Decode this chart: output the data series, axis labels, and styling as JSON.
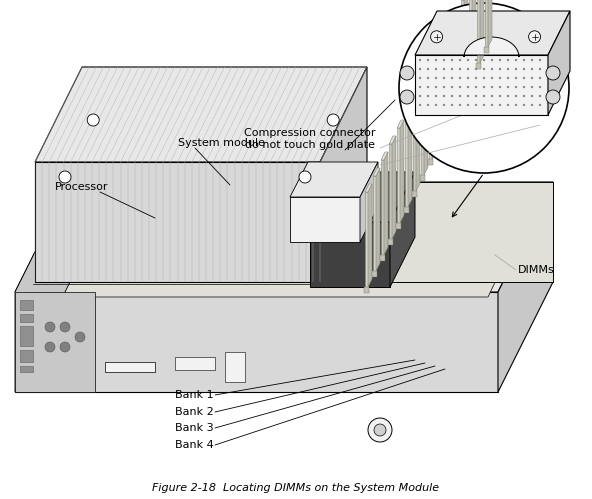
{
  "title": "Figure 2-18  Locating DIMMs on the System Module",
  "bg_color": "#ffffff",
  "labels": {
    "compression_connector": "Compression connector\ndo not touch gold plate",
    "system_module": "System module",
    "processor": "Processor",
    "dimms": "DIMMs",
    "bank1": "Bank 1",
    "bank2": "Bank 2",
    "bank3": "Bank 3",
    "bank4": "Bank 4"
  },
  "font_size": 8,
  "title_font_size": 8,
  "line_color": "#000000",
  "text_color": "#000000",
  "gray_light": "#e8e8e8",
  "gray_mid": "#c8c8c8",
  "gray_dark": "#a0a0a0",
  "gray_front": "#d8d8d8",
  "white": "#ffffff",
  "nearly_white": "#f2f2f2"
}
